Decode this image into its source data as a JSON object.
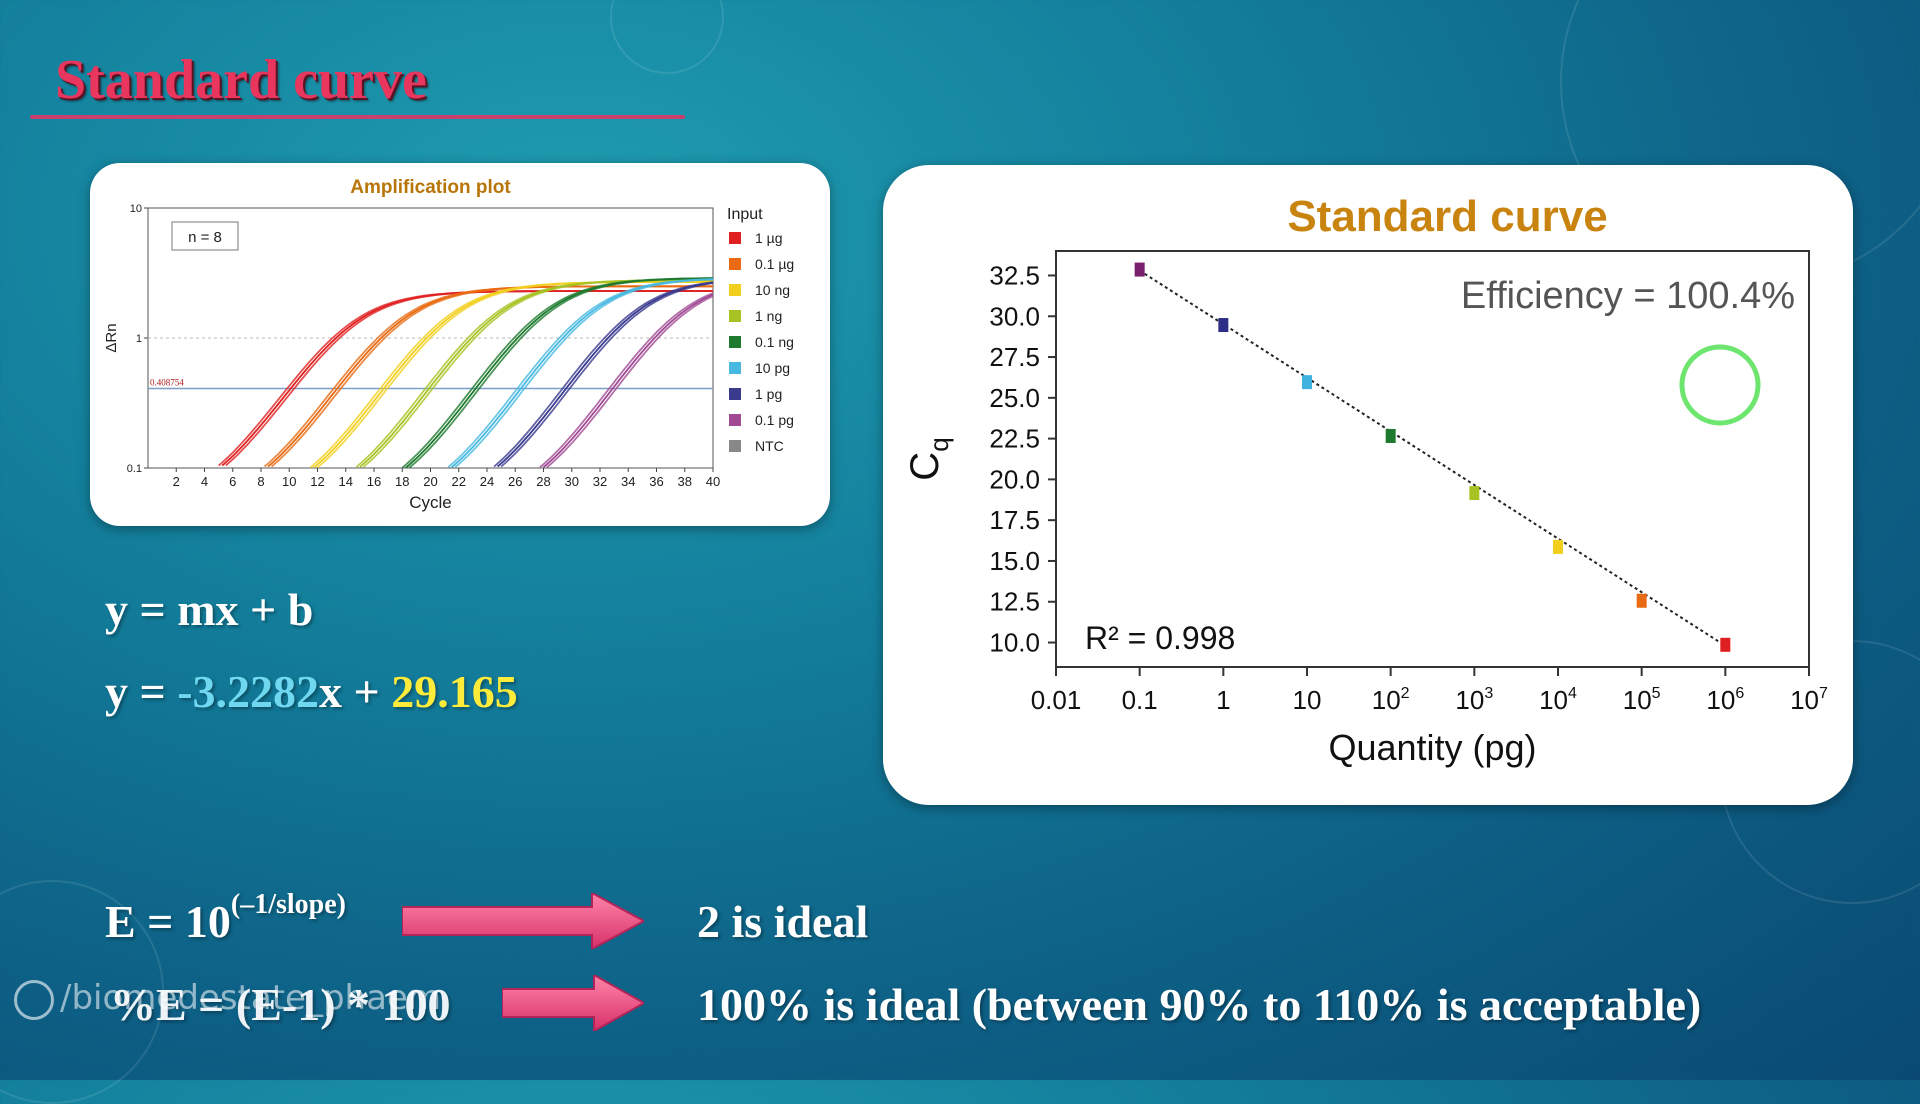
{
  "slide": {
    "title": "Standard curve"
  },
  "equations": {
    "linear_general": "y = mx + b",
    "linear_fit_prefix": "y = ",
    "linear_fit_slope": "-3.2282",
    "linear_fit_mid": "x + ",
    "linear_fit_intercept": "29.165",
    "efficiency_formula": "E = 10",
    "efficiency_exponent": "(–1/slope)",
    "efficiency_note": "2 is ideal",
    "percent_formula": "%E = (E-1) * 100",
    "percent_note": "100% is ideal (between 90% to 110% is acceptable)"
  },
  "watermark": {
    "text": "/biomedestate_phaem"
  },
  "colors": {
    "title": "#e8365e",
    "slope": "#6fd8f0",
    "intercept": "#ffec3a",
    "arrow": "#e8457a",
    "chart_title": "#c98410",
    "amp_title": "#b8760a"
  },
  "chart_data": [
    {
      "type": "line",
      "title": "Amplification plot",
      "xlabel": "Cycle",
      "ylabel": "ΔRn",
      "y_scale": "log",
      "xlim": [
        0,
        40
      ],
      "ylim": [
        0.1,
        10
      ],
      "x_ticks": [
        "2",
        "4",
        "6",
        "8",
        "10",
        "12",
        "14",
        "16",
        "18",
        "20",
        "22",
        "24",
        "26",
        "28",
        "30",
        "32",
        "34",
        "36",
        "38",
        "40"
      ],
      "y_ticks": [
        "0.1",
        "1",
        "10"
      ],
      "annotation": "n = 8",
      "threshold": {
        "value": 0.408754,
        "label": "0.408754"
      },
      "legend_title": "Input",
      "legend_position": "right",
      "series": [
        {
          "name": "1 µg",
          "color": "#e02020",
          "ct": 10.1,
          "plateau": 2.3
        },
        {
          "name": "0.1 µg",
          "color": "#e86a12",
          "ct": 13.4,
          "plateau": 2.5
        },
        {
          "name": "10 ng",
          "color": "#f2cf1d",
          "ct": 16.7,
          "plateau": 2.7
        },
        {
          "name": "1 ng",
          "color": "#a6c323",
          "ct": 19.9,
          "plateau": 2.8
        },
        {
          "name": "0.1 ng",
          "color": "#1d7a2e",
          "ct": 23.2,
          "plateau": 2.9
        },
        {
          "name": "10 pg",
          "color": "#47b9e0",
          "ct": 26.4,
          "plateau": 2.9
        },
        {
          "name": "1 pg",
          "color": "#3a3a8f",
          "ct": 29.6,
          "plateau": 2.9
        },
        {
          "name": "0.1 pg",
          "color": "#a04a93",
          "ct": 32.9,
          "plateau": 2.9
        },
        {
          "name": "NTC",
          "color": "#888888",
          "ct": null,
          "plateau": null
        }
      ]
    },
    {
      "type": "scatter",
      "title": "Standard curve",
      "xlabel": "Quantity (pg)",
      "ylabel": "Cq",
      "x_scale": "log",
      "xlim": [
        0.01,
        10000000
      ],
      "ylim": [
        8.5,
        34
      ],
      "x_ticks": [
        {
          "base": "0.01",
          "exp": ""
        },
        {
          "base": "0.1",
          "exp": ""
        },
        {
          "base": "1",
          "exp": ""
        },
        {
          "base": "10",
          "exp": ""
        },
        {
          "base": "10",
          "exp": "2"
        },
        {
          "base": "10",
          "exp": "3"
        },
        {
          "base": "10",
          "exp": "4"
        },
        {
          "base": "10",
          "exp": "5"
        },
        {
          "base": "10",
          "exp": "6"
        },
        {
          "base": "10",
          "exp": "7"
        }
      ],
      "y_ticks": [
        "10.0",
        "12.5",
        "15.0",
        "17.5",
        "20.0",
        "22.5",
        "25.0",
        "27.5",
        "30.0",
        "32.5"
      ],
      "efficiency_label": "Efficiency = 100.4%",
      "r2_label": "R² = 0.998",
      "fit_line": {
        "x0": 0.1,
        "y0": 32.8,
        "x1": 1000000,
        "y1": 9.8
      },
      "points": [
        {
          "x": 0.1,
          "y": 32.8,
          "color": "#7a1f6e"
        },
        {
          "x": 1,
          "y": 29.4,
          "color": "#2e2e88"
        },
        {
          "x": 10,
          "y": 25.9,
          "color": "#3fb2e0"
        },
        {
          "x": 100,
          "y": 22.6,
          "color": "#1d7a2e"
        },
        {
          "x": 1000,
          "y": 19.1,
          "color": "#a6c323"
        },
        {
          "x": 10000,
          "y": 15.8,
          "color": "#f2cf1d"
        },
        {
          "x": 100000,
          "y": 12.5,
          "color": "#e86a12"
        },
        {
          "x": 1000000,
          "y": 9.8,
          "color": "#e02020"
        }
      ]
    }
  ]
}
